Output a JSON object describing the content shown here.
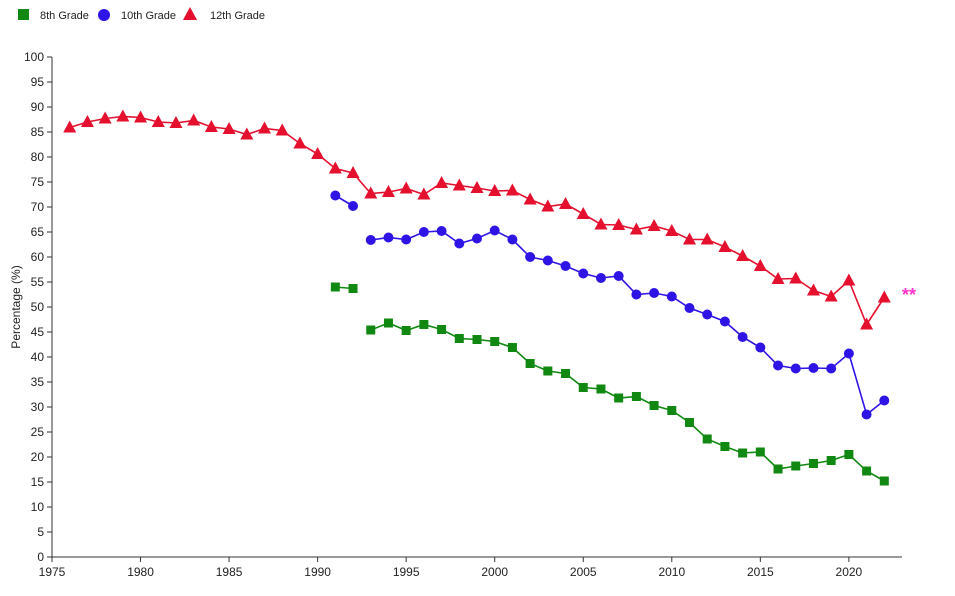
{
  "chart_data": {
    "type": "line",
    "ylabel": "Percentage (%)",
    "xlabel": "",
    "xlim": [
      1975,
      2023
    ],
    "ylim": [
      0,
      100
    ],
    "x_ticks": [
      1975,
      1980,
      1985,
      1990,
      1995,
      2000,
      2005,
      2010,
      2015,
      2020
    ],
    "y_ticks": [
      0,
      5,
      10,
      15,
      20,
      25,
      30,
      35,
      40,
      45,
      50,
      55,
      60,
      65,
      70,
      75,
      80,
      85,
      90,
      95,
      100
    ],
    "legend_position": "top-left",
    "grid": false,
    "annotation": {
      "text": "**",
      "color": "#ff33cc",
      "year": 2022,
      "series": "12th Grade"
    },
    "series": [
      {
        "name": "8th Grade",
        "color": "#118811",
        "marker": "square",
        "segments": [
          {
            "x": [
              1991,
              1992
            ],
            "y": [
              54.0,
              53.7
            ]
          },
          {
            "x": [
              1993,
              1994,
              1995,
              1996,
              1997,
              1998,
              1999,
              2000,
              2001,
              2002,
              2003,
              2004,
              2005,
              2006,
              2007,
              2008,
              2009,
              2010,
              2011,
              2012,
              2013,
              2014,
              2015,
              2016,
              2017,
              2018,
              2019,
              2020,
              2021,
              2022
            ],
            "y": [
              45.4,
              46.8,
              45.3,
              46.5,
              45.5,
              43.7,
              43.5,
              43.1,
              41.9,
              38.7,
              37.2,
              36.7,
              33.9,
              33.6,
              31.8,
              32.1,
              30.3,
              29.3,
              26.9,
              23.6,
              22.1,
              20.8,
              21.0,
              17.6,
              18.2,
              18.7,
              19.3,
              20.5,
              17.2,
              15.2
            ]
          }
        ]
      },
      {
        "name": "10th Grade",
        "color": "#2f14e6",
        "marker": "circle",
        "segments": [
          {
            "x": [
              1991,
              1992
            ],
            "y": [
              72.3,
              70.2
            ]
          },
          {
            "x": [
              1993,
              1994,
              1995,
              1996,
              1997,
              1998,
              1999,
              2000,
              2001,
              2002,
              2003,
              2004,
              2005,
              2006,
              2007,
              2008,
              2009,
              2010,
              2011,
              2012,
              2013,
              2014,
              2015,
              2016,
              2017,
              2018,
              2019,
              2020,
              2021,
              2022
            ],
            "y": [
              63.4,
              63.9,
              63.5,
              65.0,
              65.2,
              62.7,
              63.7,
              65.3,
              63.5,
              60.0,
              59.3,
              58.2,
              56.7,
              55.8,
              56.2,
              52.5,
              52.8,
              52.1,
              49.8,
              48.5,
              47.1,
              44.0,
              41.9,
              38.3,
              37.7,
              37.8,
              37.7,
              40.7,
              28.5,
              31.3
            ]
          }
        ]
      },
      {
        "name": "12th Grade",
        "color": "#e5102e",
        "marker": "triangle",
        "segments": [
          {
            "x": [
              1976,
              1977,
              1978,
              1979,
              1980,
              1981,
              1982,
              1983,
              1984,
              1985,
              1986,
              1987,
              1988,
              1989,
              1990,
              1991,
              1992,
              1993,
              1994,
              1995,
              1996,
              1997,
              1998,
              1999,
              2000,
              2001,
              2002,
              2003,
              2004,
              2005,
              2006,
              2007,
              2008,
              2009,
              2010,
              2011,
              2012,
              2013,
              2014,
              2015,
              2016,
              2017,
              2018,
              2019,
              2020,
              2021,
              2022
            ],
            "y": [
              85.9,
              87.0,
              87.7,
              88.1,
              87.9,
              87.0,
              86.8,
              87.3,
              86.0,
              85.6,
              84.5,
              85.7,
              85.3,
              82.7,
              80.6,
              77.7,
              76.8,
              72.7,
              73.0,
              73.7,
              72.5,
              74.8,
              74.3,
              73.8,
              73.2,
              73.3,
              71.5,
              70.1,
              70.6,
              68.6,
              66.5,
              66.4,
              65.5,
              66.2,
              65.2,
              63.5,
              63.5,
              62.0,
              60.2,
              58.2,
              55.6,
              55.7,
              53.3,
              52.1,
              55.3,
              46.5,
              51.9
            ]
          }
        ]
      }
    ]
  }
}
